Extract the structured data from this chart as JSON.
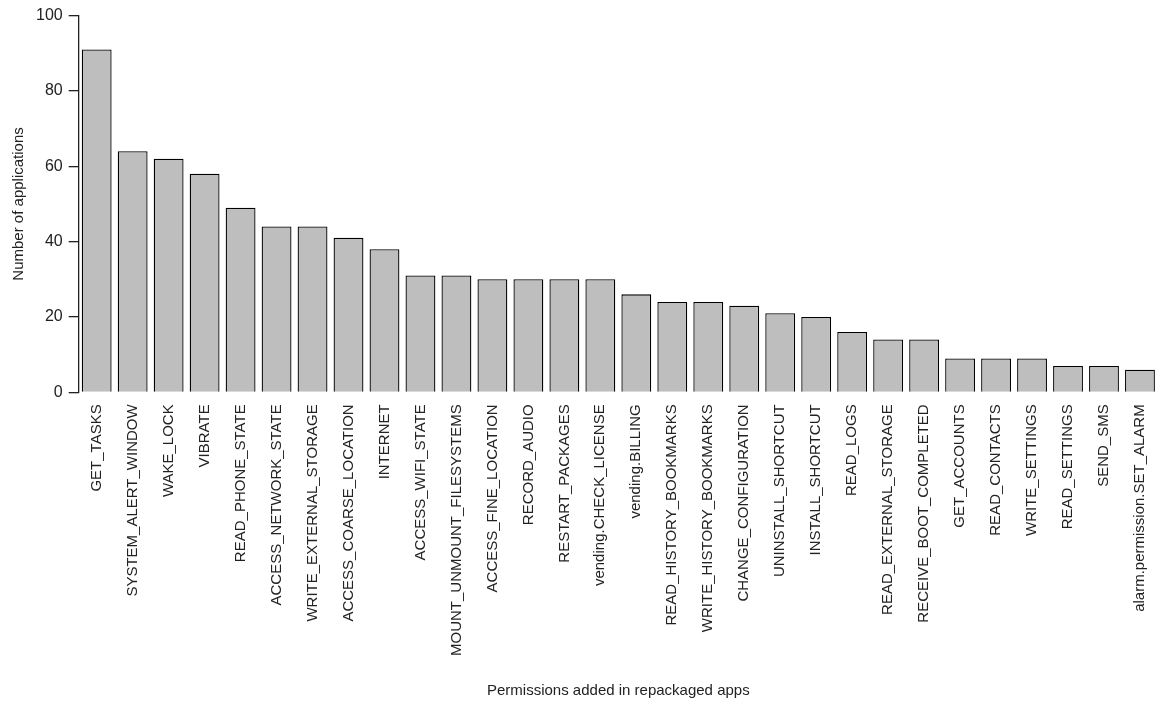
{
  "chart_data": {
    "type": "bar",
    "xlabel": "Permissions added in repackaged apps",
    "ylabel": "Number of applications",
    "categories": [
      "GET_TASKS",
      "SYSTEM_ALERT_WINDOW",
      "WAKE_LOCK",
      "VIBRATE",
      "READ_PHONE_STATE",
      "ACCESS_NETWORK_STATE",
      "WRITE_EXTERNAL_STORAGE",
      "ACCESS_COARSE_LOCATION",
      "INTERNET",
      "ACCESS_WIFI_STATE",
      "MOUNT_UNMOUNT_FILESYSTEMS",
      "ACCESS_FINE_LOCATION",
      "RECORD_AUDIO",
      "RESTART_PACKAGES",
      "vending.CHECK_LICENSE",
      "vending.BILLING",
      "READ_HISTORY_BOOKMARKS",
      "WRITE_HISTORY_BOOKMARKS",
      "CHANGE_CONFIGURATION",
      "UNINSTALL_SHORTCUT",
      "INSTALL_SHORTCUT",
      "READ_LOGS",
      "READ_EXTERNAL_STORAGE",
      "RECEIVE_BOOT_COMPLETED",
      "GET_ACCOUNTS",
      "READ_CONTACTS",
      "WRITE_SETTINGS",
      "READ_SETTINGS",
      "SEND_SMS",
      "alarm.permission.SET_ALARM"
    ],
    "values": [
      91,
      64,
      62,
      58,
      49,
      44,
      44,
      41,
      38,
      31,
      31,
      30,
      30,
      30,
      30,
      26,
      24,
      24,
      23,
      21,
      20,
      16,
      14,
      14,
      9,
      9,
      9,
      7,
      7,
      6
    ],
    "color": "#bebebe",
    "ylim": [
      0,
      100
    ],
    "yticks": [
      0,
      20,
      40,
      60,
      80,
      100
    ],
    "grid": false,
    "legend": false
  }
}
